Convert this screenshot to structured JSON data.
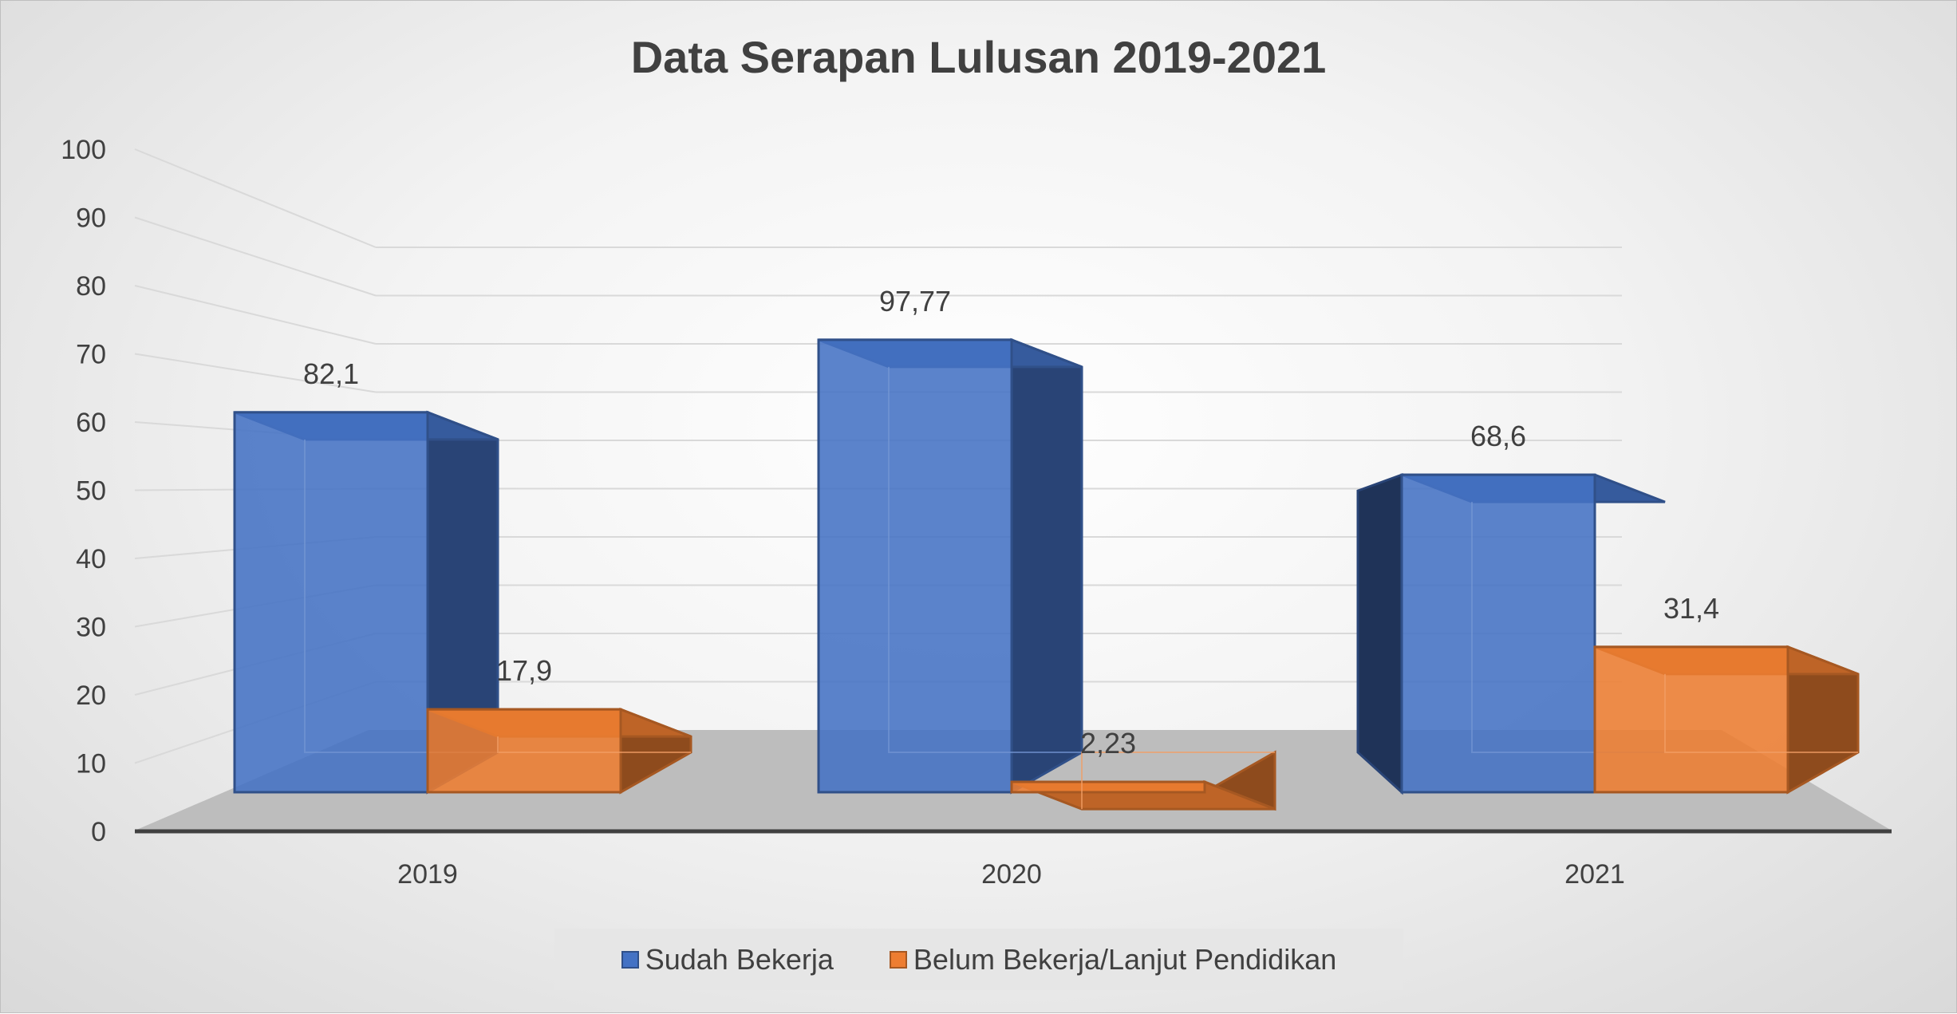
{
  "chart_data": {
    "type": "bar",
    "title": "Data Serapan Lulusan 2019-2021",
    "categories": [
      "2019",
      "2020",
      "2021"
    ],
    "series": [
      {
        "name": "Sudah Bekerja",
        "values": [
          82.1,
          97.77,
          68.6
        ],
        "labels": [
          "82,1",
          "97,77",
          "68,6"
        ],
        "color": "#4472C4"
      },
      {
        "name": "Belum Bekerja/Lanjut Pendidikan",
        "values": [
          17.9,
          2.23,
          31.4
        ],
        "labels": [
          "17,9",
          "2,23",
          "31,4"
        ],
        "color": "#ED7D31"
      }
    ],
    "ylim": [
      0,
      100
    ],
    "yticks": [
      "0",
      "10",
      "20",
      "30",
      "40",
      "50",
      "60",
      "70",
      "80",
      "90",
      "100"
    ],
    "xlabel": "",
    "ylabel": "",
    "grid": true,
    "legend": "bottom",
    "style": "3d-clustered-column"
  }
}
